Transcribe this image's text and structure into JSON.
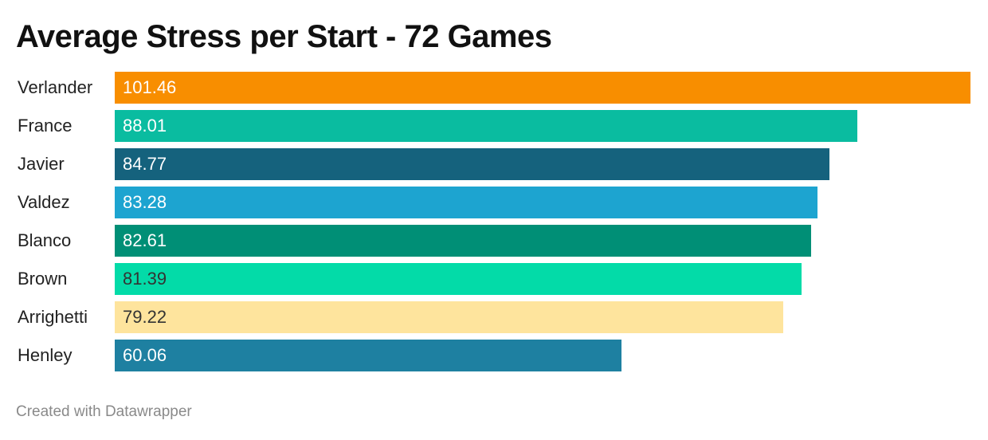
{
  "chart_data": {
    "type": "bar",
    "orientation": "horizontal",
    "title": "Average Stress per Start - 72 Games",
    "categories": [
      "Verlander",
      "France",
      "Javier",
      "Valdez",
      "Blanco",
      "Brown",
      "Arrighetti",
      "Henley"
    ],
    "values": [
      101.46,
      88.01,
      84.77,
      83.28,
      82.61,
      81.39,
      79.22,
      60.06
    ],
    "value_labels": [
      "101.46",
      "88.01",
      "84.77",
      "83.28",
      "82.61",
      "81.39",
      "79.22",
      "60.06"
    ],
    "colors": [
      "#f88e00",
      "#0abca0",
      "#15627d",
      "#1da4d0",
      "#008f76",
      "#03dba8",
      "#fee49d",
      "#1e80a1"
    ],
    "label_colors": [
      "#ffffff",
      "#ffffff",
      "#ffffff",
      "#ffffff",
      "#ffffff",
      "#333333",
      "#333333",
      "#ffffff"
    ],
    "xlim": [
      0,
      101.46
    ],
    "grid": false,
    "legend": "none"
  },
  "footer": {
    "credit": "Created with Datawrapper"
  }
}
